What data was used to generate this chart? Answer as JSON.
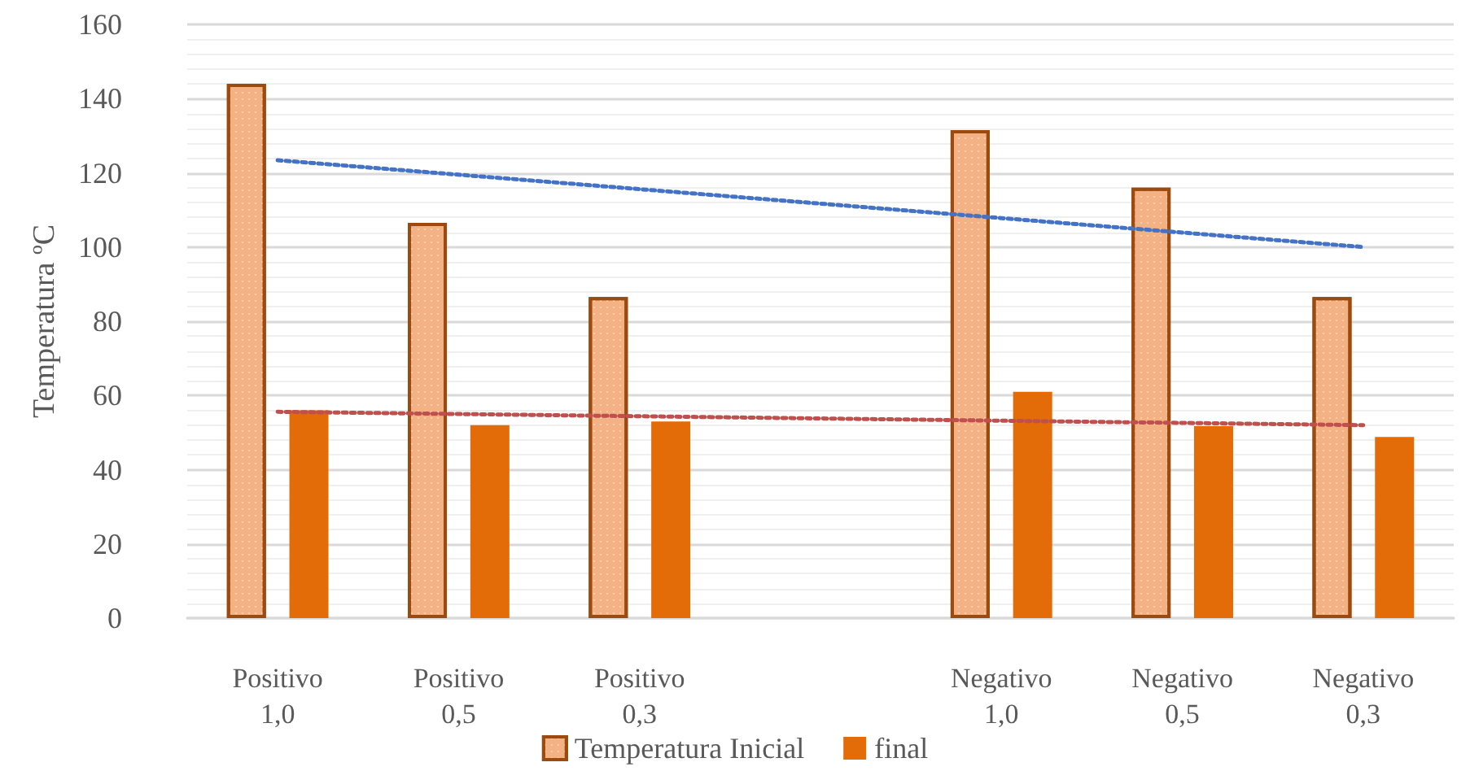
{
  "chart_data": {
    "type": "bar",
    "ylabel": "Temperatura ºC",
    "categories": [
      "Positivo 1,0",
      "Positivo 0,5",
      "Positivo 0,3",
      null,
      "Negativo 1,0",
      "Negativo 0,5",
      "Negativo 0,3"
    ],
    "series": [
      {
        "name": "Temperatura Inicial",
        "color": "#f4b183",
        "values": [
          144,
          106.5,
          86.5,
          null,
          131.5,
          116,
          86.5
        ]
      },
      {
        "name": "final",
        "color": "#e36c09",
        "values": [
          56,
          52,
          53,
          null,
          61,
          51.7,
          48.8
        ]
      },
      {
        "type": "line",
        "color": "#4472c4",
        "line_style": "dotted",
        "marker": "none",
        "values": [
          123.4,
          119.5,
          115.6,
          111.7,
          107.8,
          103.9,
          100
        ]
      },
      {
        "type": "line",
        "color": "#c0504d",
        "line_style": "dotted",
        "marker": "none",
        "values": [
          55.6,
          55.0,
          54.4,
          53.8,
          53.2,
          52.6,
          52.0
        ]
      }
    ],
    "ylim": [
      0,
      160
    ],
    "yticks": [
      0,
      20,
      40,
      60,
      80,
      100,
      120,
      140,
      160
    ],
    "grid": "y",
    "legend": "bottom"
  }
}
